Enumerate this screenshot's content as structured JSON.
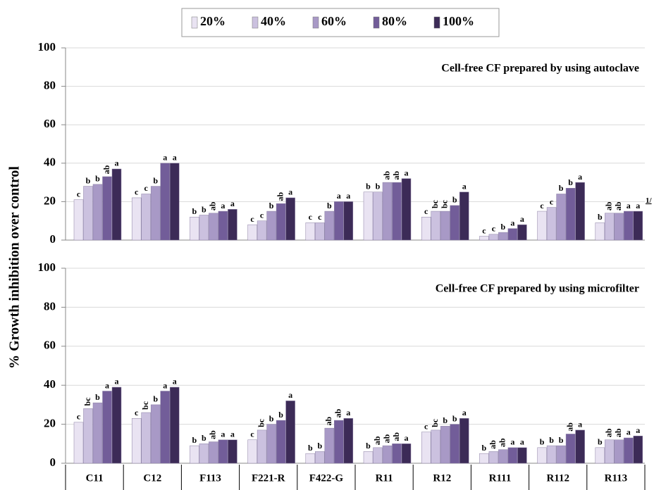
{
  "chart_data": [
    {
      "type": "bar",
      "subtitle": "Cell-free CF prepared by using autoclave",
      "y_label": "% Growth inhibition over control",
      "footnote_marker": "1/",
      "ylim": [
        0,
        100
      ],
      "yticks": [
        0,
        20,
        40,
        60,
        80,
        100
      ],
      "grid": true,
      "series": [
        {
          "name": "20%",
          "color": "#e9e3f2",
          "values": [
            21,
            22,
            12,
            8,
            9,
            25,
            12,
            2,
            15,
            9
          ],
          "letters": [
            "c",
            "c",
            "b",
            "c",
            "c",
            "b",
            "c",
            "c",
            "c",
            "b"
          ]
        },
        {
          "name": "40%",
          "color": "#cbc1df",
          "values": [
            28,
            24,
            13,
            10,
            9,
            25,
            15,
            3,
            17,
            14
          ],
          "letters": [
            "b",
            "c",
            "b",
            "c",
            "c",
            "b",
            "bc",
            "c",
            "c",
            "ab"
          ]
        },
        {
          "name": "60%",
          "color": "#a899c6",
          "values": [
            29,
            28,
            14,
            15,
            15,
            30,
            15,
            4,
            24,
            14
          ],
          "letters": [
            "b",
            "b",
            "ab",
            "b",
            "b",
            "ab",
            "bc",
            "b",
            "b",
            "ab"
          ]
        },
        {
          "name": "80%",
          "color": "#725d99",
          "values": [
            33,
            40,
            15,
            19,
            20,
            30,
            18,
            6,
            27,
            15
          ],
          "letters": [
            "ab",
            "a",
            "a",
            "ab",
            "a",
            "ab",
            "b",
            "a",
            "b",
            "a"
          ]
        },
        {
          "name": "100%",
          "color": "#3c2b57",
          "values": [
            37,
            40,
            16,
            22,
            20,
            32,
            25,
            8,
            30,
            15
          ],
          "letters": [
            "a",
            "a",
            "a",
            "a",
            "a",
            "a",
            "a",
            "a",
            "a",
            "a"
          ]
        }
      ]
    },
    {
      "type": "bar",
      "subtitle": "Cell-free CF prepared by using microfilter",
      "categories": [
        "C11",
        "C12",
        "F113",
        "F221-R",
        "F422-G",
        "R11",
        "R12",
        "R111",
        "R112",
        "R113"
      ],
      "ylim": [
        0,
        100
      ],
      "yticks": [
        0,
        20,
        40,
        60,
        80,
        100
      ],
      "grid": true,
      "series": [
        {
          "color": "#e9e3f2",
          "values": [
            21,
            23,
            9,
            12,
            5,
            6,
            16,
            5,
            8,
            8
          ],
          "letters": [
            "c",
            "c",
            "b",
            "c",
            "b",
            "b",
            "c",
            "b",
            "b",
            "b"
          ]
        },
        {
          "color": "#cbc1df",
          "values": [
            28,
            26,
            10,
            17,
            6,
            8,
            17,
            6,
            9,
            12
          ],
          "letters": [
            "bc",
            "bc",
            "b",
            "bc",
            "b",
            "ab",
            "bc",
            "ab",
            "b",
            "ab"
          ]
        },
        {
          "color": "#a899c6",
          "values": [
            31,
            30,
            11,
            20,
            18,
            9,
            19,
            7,
            9,
            12
          ],
          "letters": [
            "b",
            "b",
            "ab",
            "b",
            "ab",
            "ab",
            "b",
            "ab",
            "b",
            "ab"
          ]
        },
        {
          "color": "#725d99",
          "values": [
            37,
            37,
            12,
            22,
            22,
            10,
            20,
            8,
            15,
            13
          ],
          "letters": [
            "a",
            "a",
            "a",
            "b",
            "ab",
            "ab",
            "b",
            "a",
            "ab",
            "a"
          ]
        },
        {
          "color": "#3c2b57",
          "values": [
            39,
            39,
            12,
            32,
            23,
            10,
            23,
            8,
            17,
            14
          ],
          "letters": [
            "a",
            "a",
            "a",
            "a",
            "a",
            "a",
            "a",
            "a",
            "a",
            "a"
          ]
        }
      ]
    }
  ]
}
